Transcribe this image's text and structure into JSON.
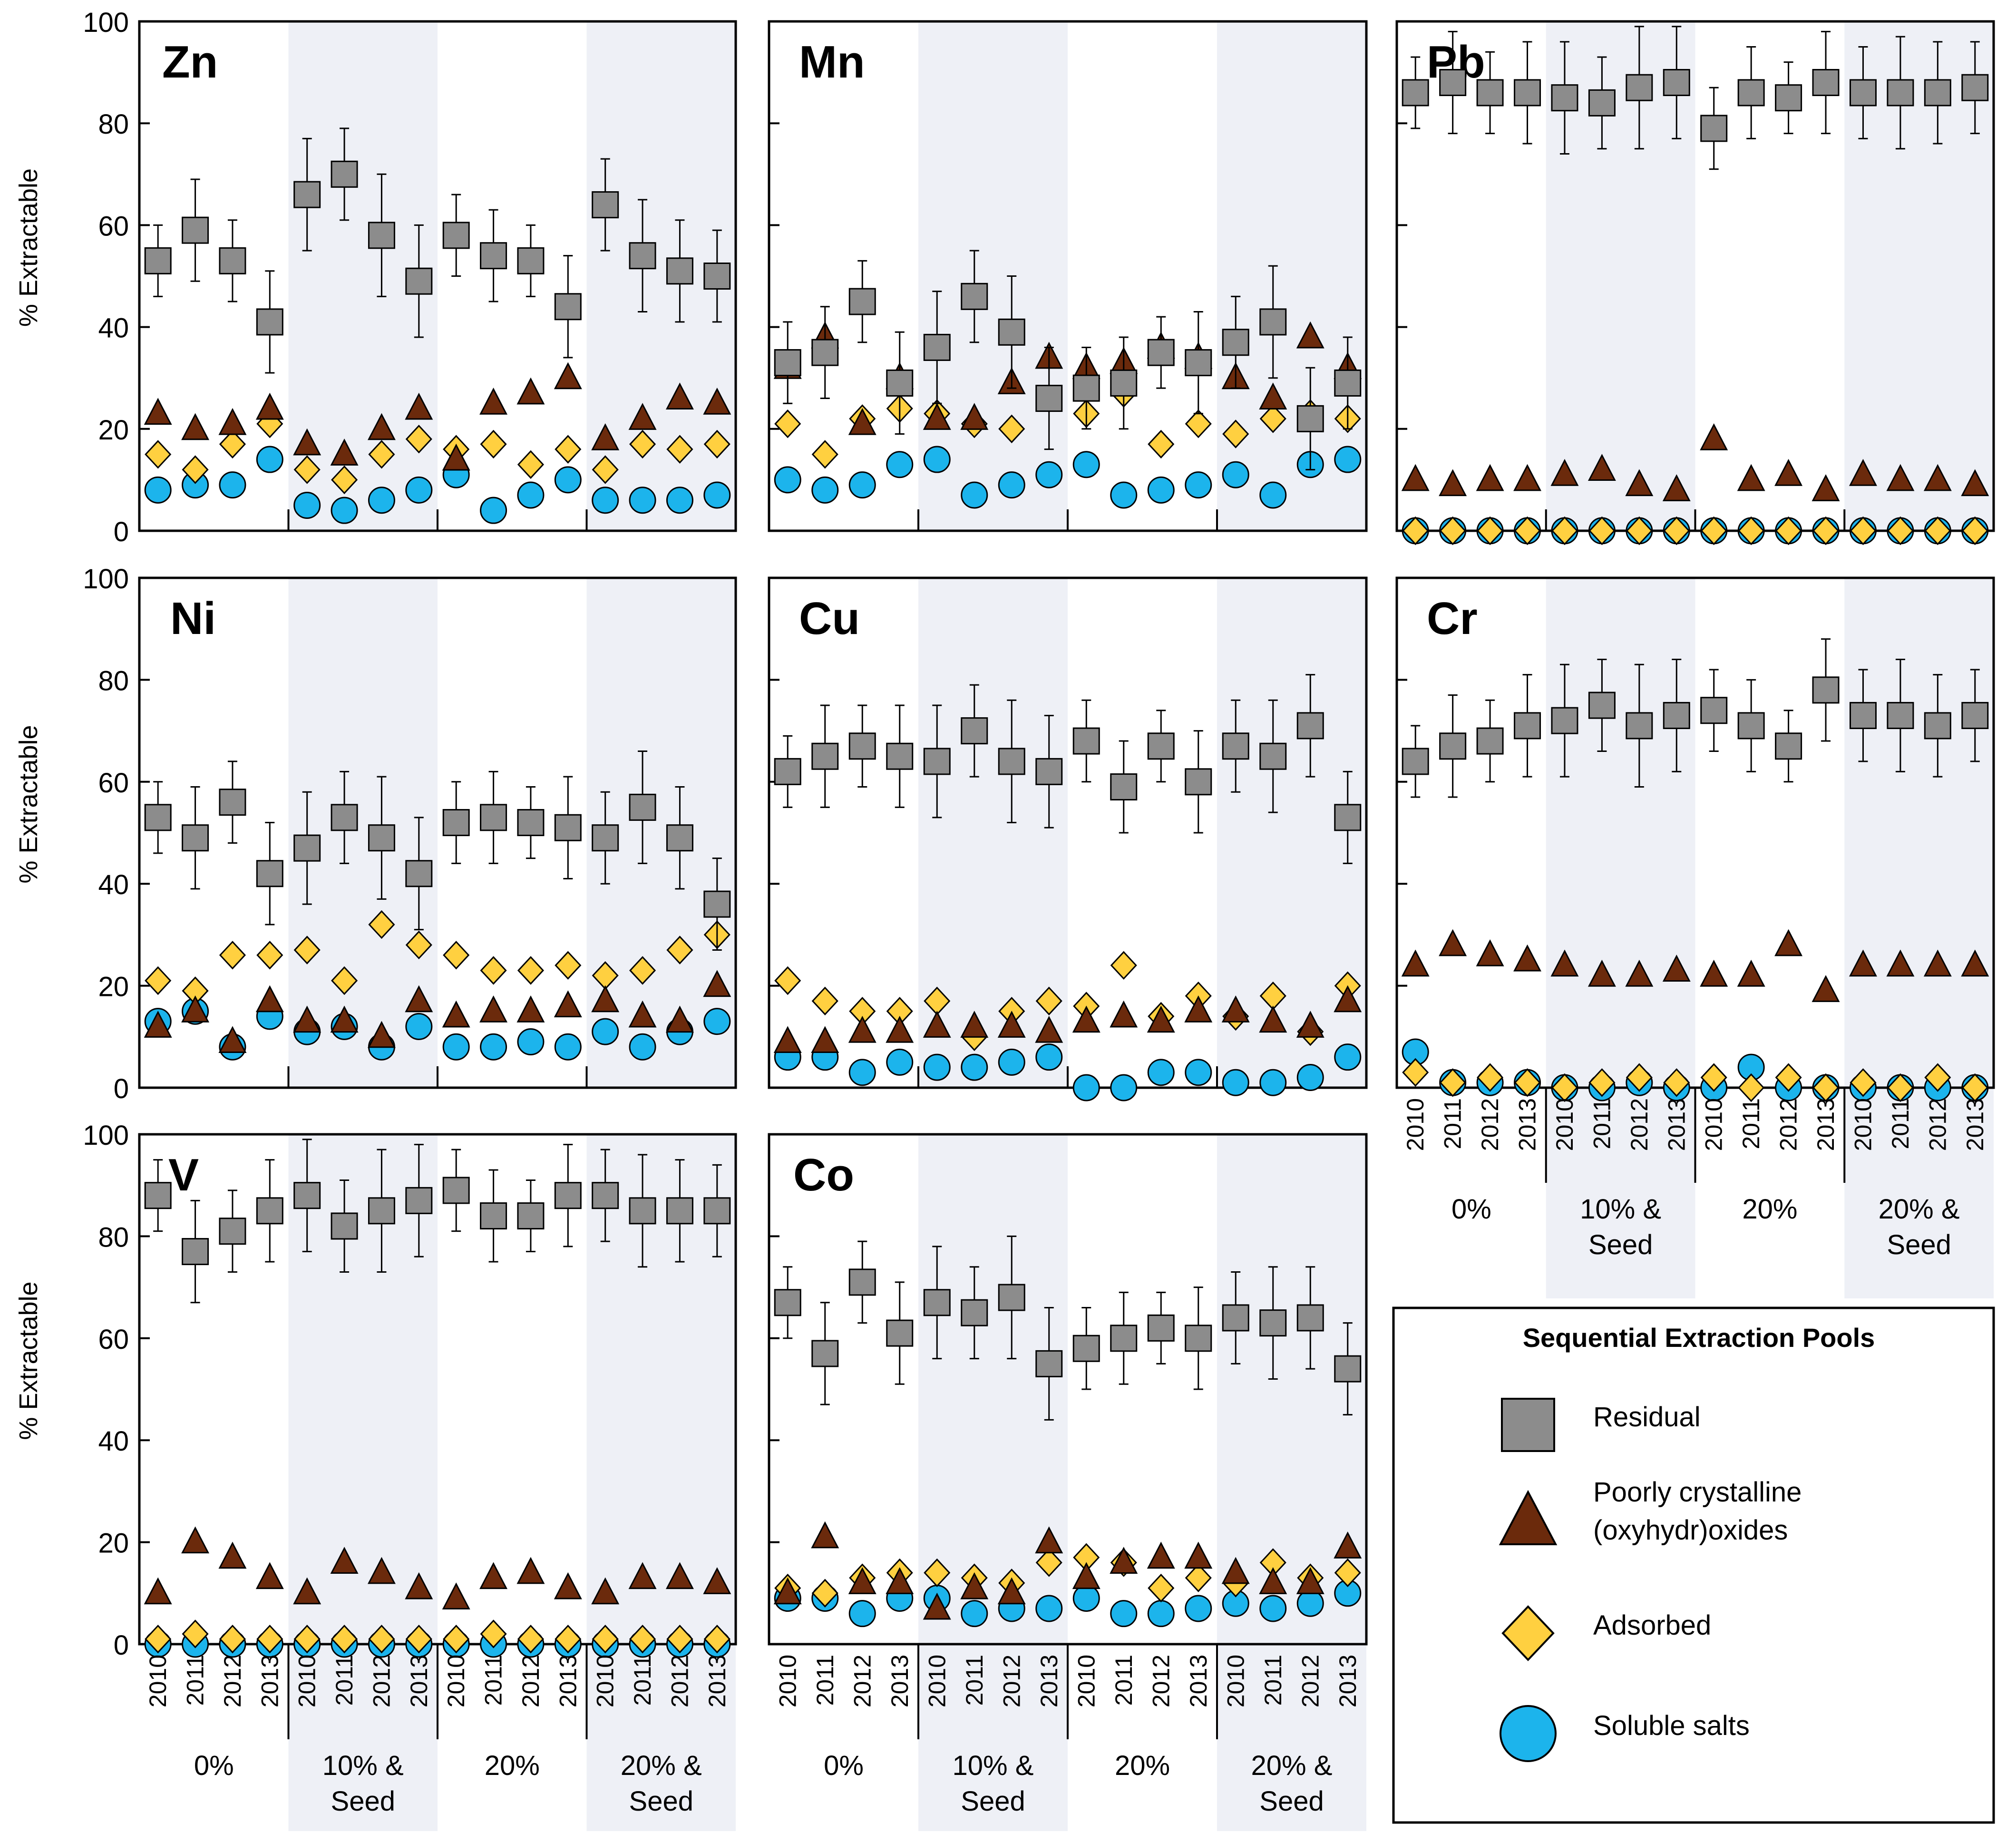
{
  "chart_data": {
    "type": "scatter",
    "ylabel": "% Extractable",
    "ylim": [
      0,
      100
    ],
    "yticks": [
      0,
      20,
      40,
      60,
      80,
      100
    ],
    "years": [
      "2010",
      "2011",
      "2012",
      "2013"
    ],
    "treatments": [
      {
        "line1": "0%",
        "line2": "",
        "shaded": false
      },
      {
        "line1": "10% &",
        "line2": "Seed",
        "shaded": true
      },
      {
        "line1": "20%",
        "line2": "",
        "shaded": false
      },
      {
        "line1": "20% &",
        "line2": "Seed",
        "shaded": true
      }
    ],
    "series_names": [
      "Residual",
      "Poorly crystalline (oxyhydr)oxides",
      "Adsorbed",
      "Soluble salts"
    ],
    "colors": {
      "residual": "#8c8c8c",
      "oxides": "#6b2a0c",
      "adsorbed": "#ffd040",
      "soluble": "#1cb4ec"
    },
    "legend": {
      "title": "Sequential Extraction Pools",
      "items": [
        {
          "key": "residual",
          "lines": [
            "Residual"
          ]
        },
        {
          "key": "oxides",
          "lines": [
            "Poorly crystalline",
            "(oxyhydr)oxides"
          ]
        },
        {
          "key": "adsorbed",
          "lines": [
            "Adsorbed"
          ]
        },
        {
          "key": "soluble",
          "lines": [
            "Soluble salts"
          ]
        }
      ]
    },
    "panels": [
      {
        "metal": "Zn",
        "residual": [
          53,
          59,
          53,
          41,
          66,
          70,
          58,
          49,
          58,
          54,
          53,
          44,
          64,
          54,
          51,
          50
        ],
        "residual_err": [
          7,
          10,
          8,
          10,
          11,
          9,
          12,
          11,
          8,
          9,
          7,
          10,
          9,
          11,
          10,
          9
        ],
        "oxides": [
          23,
          20,
          21,
          24,
          17,
          15,
          20,
          24,
          14,
          25,
          27,
          30,
          18,
          22,
          26,
          25
        ],
        "adsorbed": [
          15,
          12,
          17,
          21,
          12,
          10,
          15,
          18,
          16,
          17,
          13,
          16,
          12,
          17,
          16,
          17
        ],
        "soluble": [
          8,
          9,
          9,
          14,
          5,
          4,
          6,
          8,
          11,
          4,
          7,
          10,
          6,
          6,
          6,
          7
        ]
      },
      {
        "metal": "Mn",
        "residual": [
          33,
          35,
          45,
          29,
          36,
          46,
          39,
          26,
          28,
          29,
          35,
          33,
          37,
          41,
          22,
          29
        ],
        "residual_err": [
          8,
          9,
          8,
          10,
          11,
          9,
          11,
          10,
          8,
          9,
          7,
          10,
          9,
          11,
          10,
          9
        ],
        "oxides": [
          32,
          38,
          21,
          30,
          22,
          22,
          29,
          34,
          32,
          33,
          36,
          34,
          30,
          26,
          38,
          32
        ],
        "adsorbed": [
          21,
          15,
          22,
          24,
          23,
          21,
          20,
          26,
          23,
          27,
          17,
          21,
          19,
          22,
          23,
          22
        ],
        "soluble": [
          10,
          8,
          9,
          13,
          14,
          7,
          9,
          11,
          13,
          7,
          8,
          9,
          11,
          7,
          13,
          14
        ]
      },
      {
        "metal": "Pb",
        "residual": [
          86,
          88,
          86,
          86,
          85,
          84,
          87,
          88,
          79,
          86,
          85,
          88,
          86,
          86,
          86,
          87
        ],
        "residual_err": [
          7,
          10,
          8,
          10,
          11,
          9,
          12,
          11,
          8,
          9,
          7,
          10,
          9,
          11,
          10,
          9
        ],
        "oxides": [
          10,
          9,
          10,
          10,
          11,
          12,
          9,
          8,
          18,
          10,
          11,
          8,
          11,
          10,
          10,
          9
        ],
        "adsorbed": [
          0,
          0,
          0,
          0,
          0,
          0,
          0,
          0,
          0,
          0,
          0,
          0,
          0,
          0,
          0,
          0
        ],
        "soluble": [
          0,
          0,
          0,
          0,
          0,
          0,
          0,
          0,
          0,
          0,
          0,
          0,
          0,
          0,
          0,
          0
        ]
      },
      {
        "metal": "Ni",
        "residual": [
          53,
          49,
          56,
          42,
          47,
          53,
          49,
          42,
          52,
          53,
          52,
          51,
          49,
          55,
          49,
          36
        ],
        "residual_err": [
          7,
          10,
          8,
          10,
          11,
          9,
          12,
          11,
          8,
          9,
          7,
          10,
          9,
          11,
          10,
          9
        ],
        "oxides": [
          12,
          15,
          9,
          17,
          13,
          13,
          10,
          17,
          14,
          15,
          15,
          16,
          17,
          14,
          13,
          20
        ],
        "adsorbed": [
          21,
          19,
          26,
          26,
          27,
          21,
          32,
          28,
          26,
          23,
          23,
          24,
          22,
          23,
          27,
          30
        ],
        "soluble": [
          13,
          15,
          8,
          14,
          11,
          12,
          8,
          12,
          8,
          8,
          9,
          8,
          11,
          8,
          11,
          13
        ]
      },
      {
        "metal": "Cu",
        "residual": [
          62,
          65,
          67,
          65,
          64,
          70,
          64,
          62,
          68,
          59,
          67,
          60,
          67,
          65,
          71,
          53
        ],
        "residual_err": [
          7,
          10,
          8,
          10,
          11,
          9,
          12,
          11,
          8,
          9,
          7,
          10,
          9,
          11,
          10,
          9
        ],
        "oxides": [
          9,
          9,
          11,
          11,
          12,
          12,
          12,
          11,
          13,
          14,
          13,
          15,
          15,
          13,
          12,
          17
        ],
        "adsorbed": [
          21,
          17,
          15,
          15,
          17,
          10,
          15,
          17,
          16,
          24,
          14,
          18,
          14,
          18,
          11,
          20
        ],
        "soluble": [
          6,
          6,
          3,
          5,
          4,
          4,
          5,
          6,
          0,
          0,
          3,
          3,
          1,
          1,
          2,
          6
        ]
      },
      {
        "metal": "Cr",
        "residual": [
          64,
          67,
          68,
          71,
          72,
          75,
          71,
          73,
          74,
          71,
          67,
          78,
          73,
          73,
          71,
          73
        ],
        "residual_err": [
          7,
          10,
          8,
          10,
          11,
          9,
          12,
          11,
          8,
          9,
          7,
          10,
          9,
          11,
          10,
          9
        ],
        "oxides": [
          24,
          28,
          26,
          25,
          24,
          22,
          22,
          23,
          22,
          22,
          28,
          19,
          24,
          24,
          24,
          24
        ],
        "adsorbed": [
          3,
          1,
          2,
          1,
          0,
          1,
          2,
          1,
          2,
          0,
          2,
          0,
          1,
          0,
          2,
          0
        ],
        "soluble": [
          7,
          1,
          1,
          1,
          0,
          0,
          1,
          0,
          0,
          4,
          0,
          0,
          0,
          0,
          0,
          0
        ]
      },
      {
        "metal": "V",
        "residual": [
          88,
          77,
          81,
          85,
          88,
          82,
          85,
          87,
          89,
          84,
          84,
          88,
          88,
          85,
          85,
          85
        ],
        "residual_err": [
          7,
          10,
          8,
          10,
          11,
          9,
          12,
          11,
          8,
          9,
          7,
          10,
          9,
          11,
          10,
          9
        ],
        "oxides": [
          10,
          20,
          17,
          13,
          10,
          16,
          14,
          11,
          9,
          13,
          14,
          11,
          10,
          13,
          13,
          12
        ],
        "adsorbed": [
          1,
          2,
          1,
          1,
          1,
          1,
          1,
          1,
          1,
          2,
          1,
          1,
          1,
          1,
          1,
          1
        ],
        "soluble": [
          0,
          0,
          0,
          0,
          0,
          0,
          0,
          0,
          0,
          0,
          0,
          0,
          0,
          0,
          0,
          0
        ]
      },
      {
        "metal": "Co",
        "residual": [
          67,
          57,
          71,
          61,
          67,
          65,
          68,
          55,
          58,
          60,
          62,
          60,
          64,
          63,
          64,
          54
        ],
        "residual_err": [
          7,
          10,
          8,
          10,
          11,
          9,
          12,
          11,
          8,
          9,
          7,
          10,
          9,
          11,
          10,
          9
        ],
        "oxides": [
          10,
          21,
          12,
          12,
          7,
          11,
          10,
          20,
          13,
          16,
          17,
          17,
          14,
          12,
          12,
          19
        ],
        "adsorbed": [
          11,
          10,
          13,
          14,
          14,
          13,
          12,
          16,
          17,
          16,
          11,
          13,
          12,
          16,
          13,
          14
        ],
        "soluble": [
          9,
          9,
          6,
          9,
          9,
          6,
          7,
          7,
          9,
          6,
          6,
          7,
          8,
          7,
          8,
          10
        ]
      }
    ]
  }
}
